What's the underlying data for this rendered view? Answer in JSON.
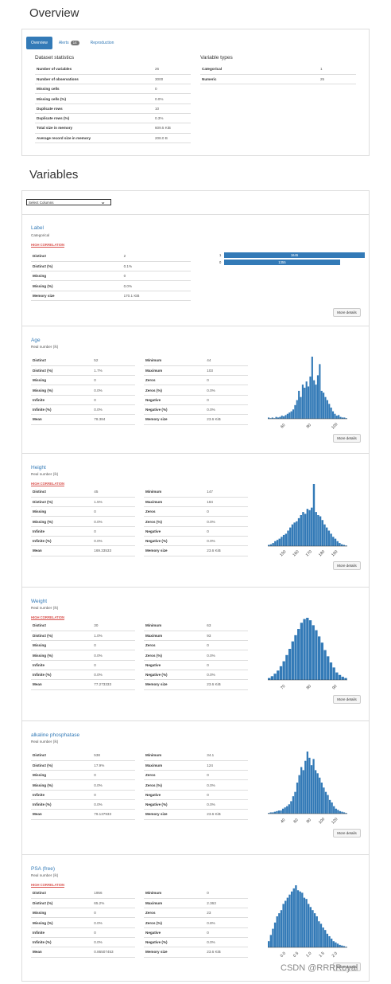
{
  "overview": {
    "title": "Overview",
    "tabs": [
      {
        "label": "Overview"
      },
      {
        "label": "Alerts",
        "badge": "14"
      },
      {
        "label": "Reproduction"
      }
    ],
    "dataset_stats_title": "Dataset statistics",
    "dataset_stats": [
      [
        "Number of variables",
        "26"
      ],
      [
        "Number of observations",
        "3000"
      ],
      [
        "Missing cells",
        "0"
      ],
      [
        "Missing cells (%)",
        "0.0%"
      ],
      [
        "Duplicate rows",
        "10"
      ],
      [
        "Duplicate rows (%)",
        "0.3%"
      ],
      [
        "Total size in memory",
        "609.5 KiB"
      ],
      [
        "Average record size in memory",
        "208.0 B"
      ]
    ],
    "var_types_title": "Variable types",
    "var_types": [
      [
        "Categorical",
        "1"
      ],
      [
        "Numeric",
        "25"
      ]
    ]
  },
  "variables": {
    "title": "Variables",
    "select_label": "Select Columns",
    "more_details": "More details",
    "alert_label": "HIGH CORRELATION"
  },
  "label_var": {
    "name": "Label",
    "type": "Categorical",
    "stats": [
      [
        "Distinct",
        "2"
      ],
      [
        "Distinct (%)",
        "0.1%"
      ],
      [
        "Missing",
        "0"
      ],
      [
        "Missing (%)",
        "0.0%"
      ],
      [
        "Memory size",
        "170.1 KiB"
      ]
    ],
    "freq": [
      {
        "cat": "1",
        "count": "1645",
        "frac": 1.0
      },
      {
        "cat": "0",
        "count": "1355",
        "frac": 0.824
      }
    ]
  },
  "numvars": [
    {
      "name": "Age",
      "type": "Real number (ℝ)",
      "alert": false,
      "left": [
        [
          "Distinct",
          "52"
        ],
        [
          "Distinct (%)",
          "1.7%"
        ],
        [
          "Missing",
          "0"
        ],
        [
          "Missing (%)",
          "0.0%"
        ],
        [
          "Infinite",
          "0"
        ],
        [
          "Infinite (%)",
          "0.0%"
        ],
        [
          "Mean",
          "78.384"
        ]
      ],
      "right": [
        [
          "Minimum",
          "44"
        ],
        [
          "Maximum",
          "103"
        ],
        [
          "Zeros",
          "0"
        ],
        [
          "Zeros (%)",
          "0.0%"
        ],
        [
          "Negative",
          "0"
        ],
        [
          "Negative (%)",
          "0.0%"
        ],
        [
          "Memory size",
          "23.6 KiB"
        ]
      ],
      "ticks": [
        "60",
        "80",
        "100"
      ],
      "hist": [
        0.02,
        0.01,
        0.02,
        0.01,
        0.03,
        0.02,
        0.03,
        0.05,
        0.04,
        0.06,
        0.08,
        0.1,
        0.12,
        0.15,
        0.22,
        0.3,
        0.45,
        0.35,
        0.55,
        0.5,
        0.6,
        0.52,
        0.68,
        1.0,
        0.62,
        0.55,
        0.7,
        0.88,
        0.45,
        0.42,
        0.35,
        0.3,
        0.24,
        0.18,
        0.12,
        0.08,
        0.05,
        0.06,
        0.03,
        0.02,
        0.02,
        0.01
      ]
    },
    {
      "name": "Height",
      "type": "Real number (ℝ)",
      "alert": true,
      "left": [
        [
          "Distinct",
          "45"
        ],
        [
          "Distinct (%)",
          "1.5%"
        ],
        [
          "Missing",
          "0"
        ],
        [
          "Missing (%)",
          "0.0%"
        ],
        [
          "Infinite",
          "0"
        ],
        [
          "Infinite (%)",
          "0.0%"
        ],
        [
          "Mean",
          "169.33533"
        ]
      ],
      "right": [
        [
          "Minimum",
          "147"
        ],
        [
          "Maximum",
          "184"
        ],
        [
          "Zeros",
          "0"
        ],
        [
          "Zeros (%)",
          "0.0%"
        ],
        [
          "Negative",
          "0"
        ],
        [
          "Negative (%)",
          "0.0%"
        ],
        [
          "Memory size",
          "23.6 KiB"
        ]
      ],
      "ticks": [
        "150",
        "160",
        "170",
        "180",
        "190"
      ],
      "hist": [
        0.02,
        0.03,
        0.05,
        0.08,
        0.1,
        0.12,
        0.15,
        0.18,
        0.2,
        0.25,
        0.3,
        0.35,
        0.38,
        0.4,
        0.45,
        0.5,
        0.55,
        0.52,
        0.6,
        0.58,
        0.62,
        1.0,
        0.55,
        0.5,
        0.48,
        0.42,
        0.35,
        0.3,
        0.25,
        0.2,
        0.15,
        0.12,
        0.08,
        0.05,
        0.03,
        0.02,
        0.01
      ]
    },
    {
      "name": "Weight",
      "type": "Real number (ℝ)",
      "alert": true,
      "left": [
        [
          "Distinct",
          "30"
        ],
        [
          "Distinct (%)",
          "1.0%"
        ],
        [
          "Missing",
          "0"
        ],
        [
          "Missing (%)",
          "0.0%"
        ],
        [
          "Infinite",
          "0"
        ],
        [
          "Infinite (%)",
          "0.0%"
        ],
        [
          "Mean",
          "77.273333"
        ]
      ],
      "right": [
        [
          "Minimum",
          "63"
        ],
        [
          "Maximum",
          "93"
        ],
        [
          "Zeros",
          "0"
        ],
        [
          "Zeros (%)",
          "0.0%"
        ],
        [
          "Negative",
          "0"
        ],
        [
          "Negative (%)",
          "0.0%"
        ],
        [
          "Memory size",
          "23.6 KiB"
        ]
      ],
      "ticks": [
        "70",
        "80",
        "90"
      ],
      "hist": [
        0.03,
        0.06,
        0.1,
        0.15,
        0.22,
        0.3,
        0.4,
        0.5,
        0.62,
        0.72,
        0.82,
        0.92,
        0.98,
        1.0,
        0.96,
        0.88,
        0.8,
        0.7,
        0.6,
        0.48,
        0.38,
        0.28,
        0.2,
        0.12,
        0.08,
        0.05,
        0.03
      ]
    },
    {
      "name": "alkaline phosphatase",
      "type": "Real number (ℝ)",
      "alert": false,
      "left": [
        [
          "Distinct",
          "538"
        ],
        [
          "Distinct (%)",
          "17.9%"
        ],
        [
          "Missing",
          "0"
        ],
        [
          "Missing (%)",
          "0.0%"
        ],
        [
          "Infinite",
          "0"
        ],
        [
          "Infinite (%)",
          "0.0%"
        ],
        [
          "Mean",
          "79.137933"
        ]
      ],
      "right": [
        [
          "Minimum",
          "34.1"
        ],
        [
          "Maximum",
          "124"
        ],
        [
          "Zeros",
          "0"
        ],
        [
          "Zeros (%)",
          "0.0%"
        ],
        [
          "Negative",
          "0"
        ],
        [
          "Negative (%)",
          "0.0%"
        ],
        [
          "Memory size",
          "23.6 KiB"
        ]
      ],
      "ticks": [
        "40",
        "60",
        "80",
        "100",
        "120"
      ],
      "hist": [
        0.01,
        0.02,
        0.02,
        0.03,
        0.04,
        0.05,
        0.05,
        0.08,
        0.1,
        0.12,
        0.15,
        0.2,
        0.28,
        0.35,
        0.5,
        0.62,
        0.75,
        0.7,
        0.85,
        1.0,
        0.9,
        0.78,
        0.88,
        0.7,
        0.65,
        0.58,
        0.5,
        0.42,
        0.35,
        0.3,
        0.22,
        0.18,
        0.12,
        0.08,
        0.06,
        0.04,
        0.03,
        0.02,
        0.01
      ]
    },
    {
      "name": "PSA (free)",
      "type": "Real number (ℝ)",
      "alert": true,
      "left": [
        [
          "Distinct",
          "1956"
        ],
        [
          "Distinct (%)",
          "65.2%"
        ],
        [
          "Missing",
          "0"
        ],
        [
          "Missing (%)",
          "0.0%"
        ],
        [
          "Infinite",
          "0"
        ],
        [
          "Infinite (%)",
          "0.0%"
        ],
        [
          "Mean",
          "0.86507453"
        ]
      ],
      "right": [
        [
          "Minimum",
          "0"
        ],
        [
          "Maximum",
          "2.363"
        ],
        [
          "Zeros",
          "23"
        ],
        [
          "Zeros (%)",
          "0.8%"
        ],
        [
          "Negative",
          "0"
        ],
        [
          "Negative (%)",
          "0.0%"
        ],
        [
          "Memory size",
          "23.6 KiB"
        ]
      ],
      "ticks": [
        "0.0",
        "0.5",
        "1.0",
        "1.5",
        "2.0"
      ],
      "hist": [
        0.1,
        0.2,
        0.3,
        0.4,
        0.5,
        0.55,
        0.6,
        0.7,
        0.75,
        0.8,
        0.85,
        0.9,
        0.95,
        1.0,
        0.92,
        0.9,
        0.88,
        0.8,
        0.78,
        0.7,
        0.65,
        0.6,
        0.55,
        0.5,
        0.42,
        0.38,
        0.32,
        0.28,
        0.22,
        0.18,
        0.14,
        0.1,
        0.08,
        0.06,
        0.04,
        0.03,
        0.02,
        0.01
      ]
    }
  ],
  "watermark": "CSDN @RRRRoyal"
}
